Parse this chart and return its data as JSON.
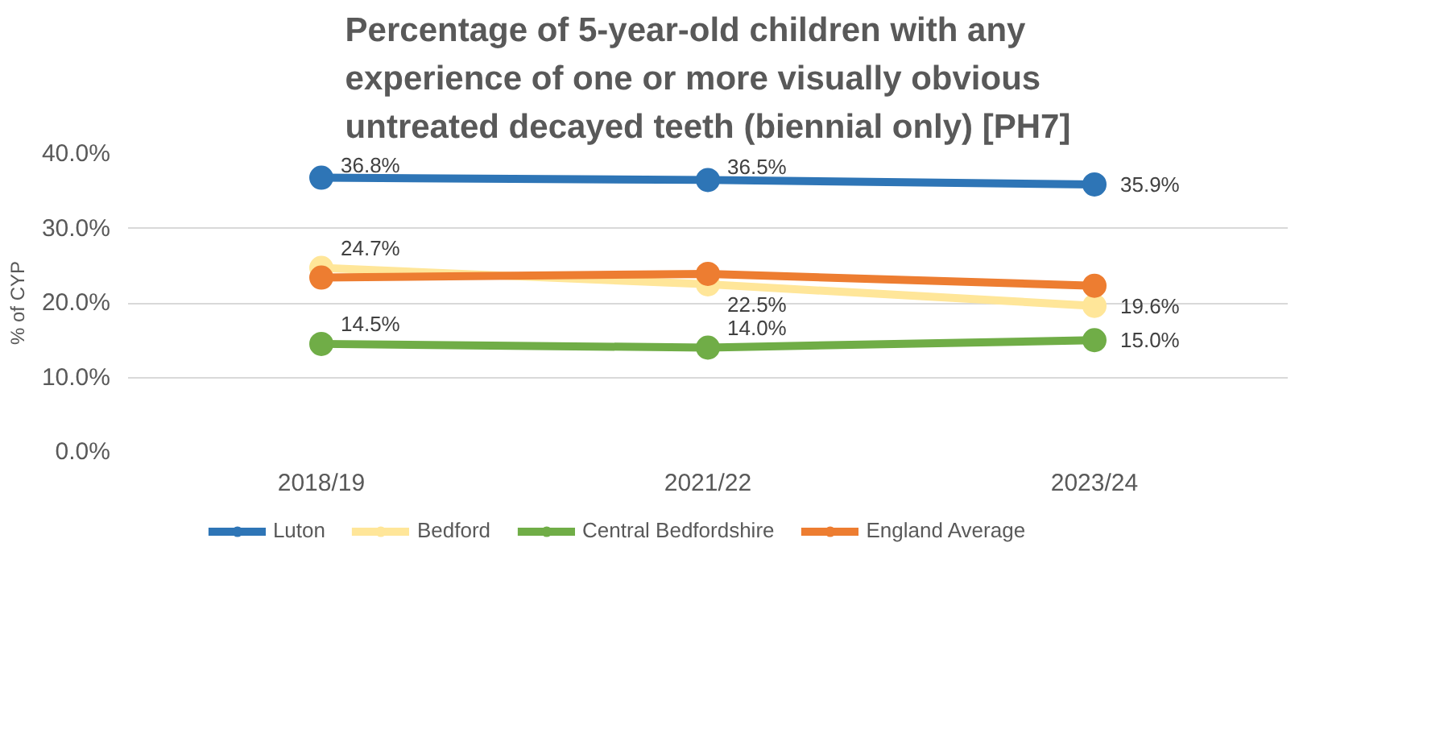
{
  "chart_data": {
    "type": "line",
    "title": "Percentage of 5-year-old children with any experience of one or more visually obvious untreated decayed teeth (biennial only) [PH7]",
    "ylabel": "% of CYP",
    "categories": [
      "2018/19",
      "2021/22",
      "2023/24"
    ],
    "series": [
      {
        "name": "Luton",
        "color": "#2e75b6",
        "values": [
          36.8,
          36.5,
          35.9
        ],
        "value_labels": [
          "36.8%",
          "36.5%",
          "35.9%"
        ]
      },
      {
        "name": "Bedford",
        "color": "#ffe699",
        "values": [
          24.7,
          22.5,
          19.6
        ],
        "value_labels": [
          "24.7%",
          "22.5%",
          "19.6%"
        ]
      },
      {
        "name": "Central Bedfordshire",
        "color": "#70ad47",
        "values": [
          14.5,
          14.0,
          15.0
        ],
        "value_labels": [
          "14.5%",
          "14.0%",
          "15.0%"
        ]
      },
      {
        "name": "England Average",
        "color": "#ed7d31",
        "values": [
          23.4,
          23.9,
          22.3
        ]
      }
    ],
    "ylim": [
      0,
      40
    ],
    "yticks": [
      {
        "value": 0,
        "label": "0.0%"
      },
      {
        "value": 10,
        "label": "10.0%"
      },
      {
        "value": 20,
        "label": "20.0%"
      },
      {
        "value": 30,
        "label": "30.0%"
      },
      {
        "value": 40,
        "label": "40.0%"
      }
    ],
    "grid": "y",
    "legend": "bottom",
    "marker": "circle",
    "line_style": "solid"
  }
}
